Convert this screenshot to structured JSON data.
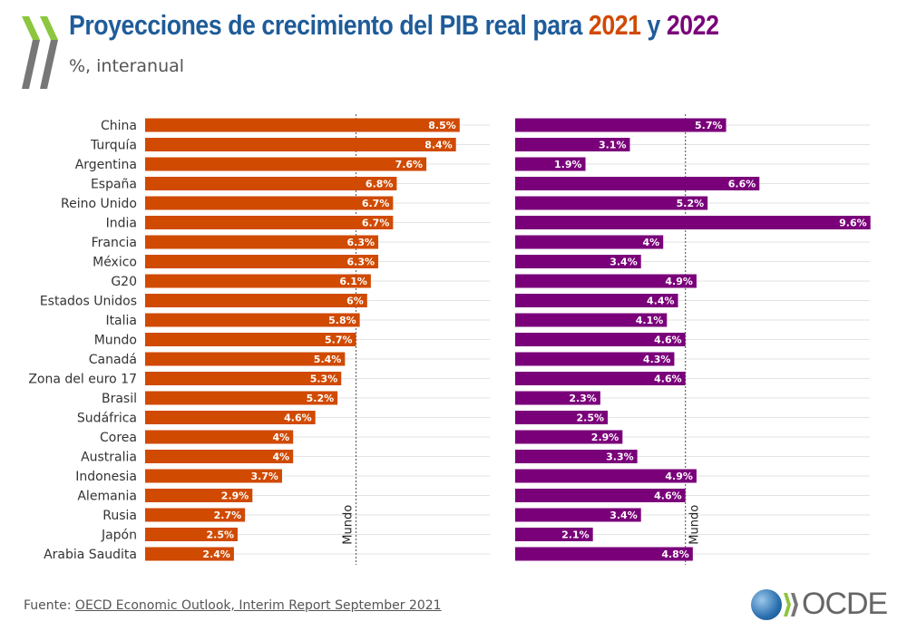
{
  "header": {
    "title_prefix": "Proyecciones de crecimiento del PIB real para ",
    "year1": "2021",
    "title_mid": " y ",
    "year2": "2022",
    "subtitle": "%, interanual"
  },
  "source": {
    "label": "Fuente: ",
    "link": "OECD Economic Outlook, Interim Report September 2021"
  },
  "logo": {
    "text": "OCDE"
  },
  "colors": {
    "title": "#1f5c99",
    "series_2021": "#d04a02",
    "series_2022": "#7a007a"
  },
  "chart_data": [
    {
      "type": "bar",
      "orientation": "horizontal",
      "series_name": "2021",
      "categories": [
        "China",
        "Turquía",
        "Argentina",
        "España",
        "Reino Unido",
        "India",
        "Francia",
        "México",
        "G20",
        "Estados Unidos",
        "Italia",
        "Mundo",
        "Canadá",
        "Zona del euro 17",
        "Brasil",
        "Sudáfrica",
        "Corea",
        "Australia",
        "Indonesia",
        "Alemania",
        "Rusia",
        "Japón",
        "Arabia Saudita"
      ],
      "values": [
        8.5,
        8.4,
        7.6,
        6.8,
        6.7,
        6.7,
        6.3,
        6.3,
        6.1,
        6,
        5.8,
        5.7,
        5.4,
        5.3,
        5.2,
        4.6,
        4,
        4,
        3.7,
        2.9,
        2.7,
        2.5,
        2.4
      ],
      "labels": [
        "8.5%",
        "8.4%",
        "7.6%",
        "6.8%",
        "6.7%",
        "6.7%",
        "6.3%",
        "6.3%",
        "6.1%",
        "6%",
        "5.8%",
        "5.7%",
        "5.4%",
        "5.3%",
        "5.2%",
        "4.6%",
        "4%",
        "4%",
        "3.7%",
        "2.9%",
        "2.7%",
        "2.5%",
        "2.4%"
      ],
      "reference_line": {
        "label": "Mundo",
        "value": 5.7
      },
      "color": "#d04a02"
    },
    {
      "type": "bar",
      "orientation": "horizontal",
      "series_name": "2022",
      "values": [
        5.7,
        3.1,
        1.9,
        6.6,
        5.2,
        9.6,
        4,
        3.4,
        4.9,
        4.4,
        4.1,
        4.6,
        4.3,
        4.6,
        2.3,
        2.5,
        2.9,
        3.3,
        4.9,
        4.6,
        3.4,
        2.1,
        4.8
      ],
      "labels": [
        "5.7%",
        "3.1%",
        "1.9%",
        "6.6%",
        "5.2%",
        "9.6%",
        "4%",
        "3.4%",
        "4.9%",
        "4.4%",
        "4.1%",
        "4.6%",
        "4.3%",
        "4.6%",
        "2.3%",
        "2.5%",
        "2.9%",
        "3.3%",
        "4.9%",
        "4.6%",
        "3.4%",
        "2.1%",
        "4.8%"
      ],
      "reference_line": {
        "label": "Mundo",
        "value": 4.6
      },
      "color": "#7a007a"
    }
  ]
}
